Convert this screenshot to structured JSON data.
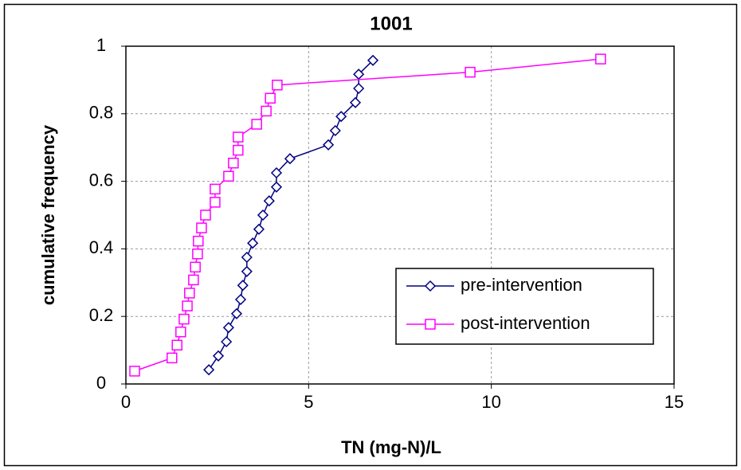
{
  "chart_data": {
    "type": "line",
    "title": "1001",
    "x_label": "TN (mg-N)/L",
    "y_label": "cumulative frequency",
    "xlim": [
      0,
      15
    ],
    "xticks": [
      0,
      5,
      10,
      15
    ],
    "ylim": [
      0,
      1
    ],
    "yticks": [
      0,
      0.2,
      0.4,
      0.6,
      0.8,
      1
    ],
    "grid": true,
    "legend_position": "lower right",
    "series": [
      {
        "name": "pre-intervention",
        "color": "#000080",
        "marker": "diamond",
        "x": [
          2.27,
          2.53,
          2.75,
          2.81,
          3.03,
          3.14,
          3.2,
          3.31,
          3.31,
          3.47,
          3.64,
          3.75,
          3.92,
          4.12,
          4.12,
          4.49,
          5.54,
          5.73,
          5.89,
          6.28,
          6.37,
          6.37,
          6.76
        ],
        "values": [
          0.042,
          0.083,
          0.125,
          0.167,
          0.208,
          0.25,
          0.292,
          0.333,
          0.375,
          0.417,
          0.458,
          0.5,
          0.542,
          0.583,
          0.625,
          0.667,
          0.708,
          0.75,
          0.792,
          0.833,
          0.875,
          0.917,
          0.958
        ]
      },
      {
        "name": "post-intervention",
        "color": "#ff00ff",
        "marker": "square",
        "x": [
          0.24,
          1.26,
          1.4,
          1.5,
          1.59,
          1.68,
          1.74,
          1.85,
          1.9,
          1.96,
          1.98,
          2.07,
          2.18,
          2.44,
          2.44,
          2.81,
          2.94,
          3.07,
          3.07,
          3.58,
          3.84,
          3.95,
          4.14,
          9.42,
          12.99
        ],
        "values": [
          0.038,
          0.077,
          0.115,
          0.154,
          0.192,
          0.231,
          0.269,
          0.308,
          0.346,
          0.385,
          0.423,
          0.462,
          0.5,
          0.538,
          0.577,
          0.615,
          0.654,
          0.692,
          0.731,
          0.769,
          0.808,
          0.846,
          0.885,
          0.923,
          0.962
        ]
      }
    ]
  }
}
